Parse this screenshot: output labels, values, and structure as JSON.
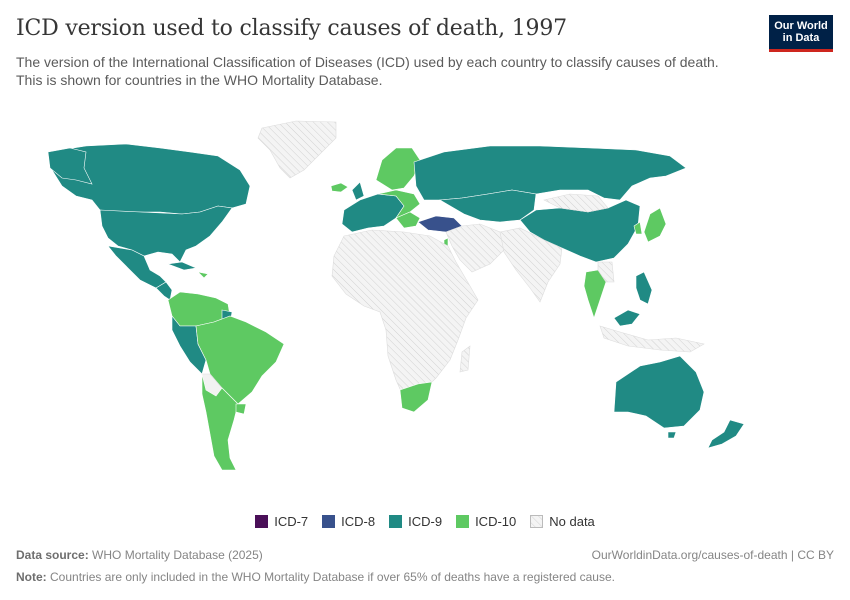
{
  "title": "ICD version used to classify causes of death, 1997",
  "subtitle": "The version of the International Classification of Diseases (ICD) used by each country to classify causes of death. This is shown for countries in the WHO Mortality Database.",
  "logo": {
    "line1": "Our World",
    "line2": "in Data"
  },
  "legend": [
    {
      "label": "ICD-7",
      "color": "#4a0f58"
    },
    {
      "label": "ICD-8",
      "color": "#38518c"
    },
    {
      "label": "ICD-9",
      "color": "#208a84"
    },
    {
      "label": "ICD-10",
      "color": "#5ec962"
    },
    {
      "label": "No data",
      "color": "pattern"
    }
  ],
  "footer": {
    "source_label": "Data source:",
    "source_value": "WHO Mortality Database (2025)",
    "url": "OurWorldinData.org/causes-of-death | CC BY",
    "note_label": "Note:",
    "note_value": "Countries are only included in the WHO Mortality Database if over 65% of deaths have a registered cause."
  },
  "colors": {
    "icd7": "#4a0f58",
    "icd8": "#38518c",
    "icd9": "#208a84",
    "icd10": "#5ec962",
    "nodata": "#f2f2f2",
    "border": "#ffffff"
  }
}
